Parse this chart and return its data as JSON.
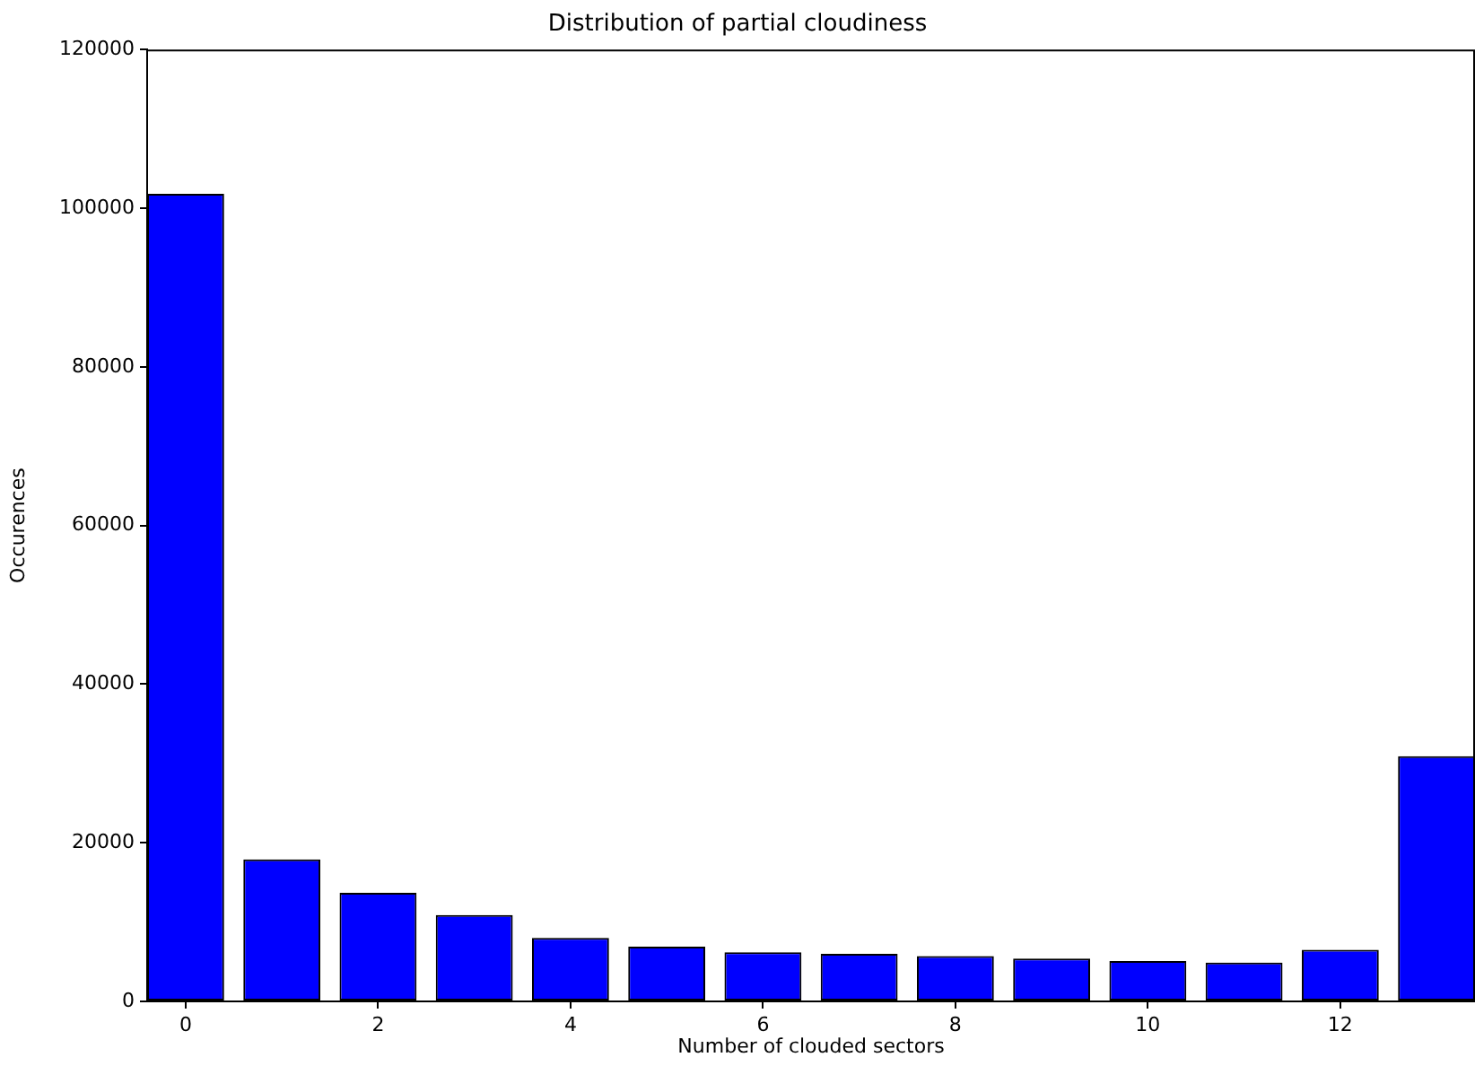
{
  "chart_data": {
    "type": "bar",
    "title": "Distribution of partial cloudiness",
    "xlabel": "Number of clouded sectors",
    "ylabel": "Occurences",
    "x": [
      0,
      1,
      2,
      3,
      4,
      5,
      6,
      7,
      8,
      9,
      10,
      11,
      12,
      13
    ],
    "values": [
      101800,
      17900,
      13700,
      10900,
      8000,
      6900,
      6200,
      6000,
      5700,
      5400,
      5100,
      4900,
      6500,
      30900
    ],
    "color": "#0000ff",
    "xlim": [
      -0.4,
      13.4
    ],
    "xticks": [
      0,
      2,
      4,
      6,
      8,
      10,
      12
    ],
    "ylim": [
      0,
      120000
    ],
    "yticks": [
      0,
      20000,
      40000,
      60000,
      80000,
      100000,
      120000
    ],
    "grid": false,
    "legend": false
  }
}
